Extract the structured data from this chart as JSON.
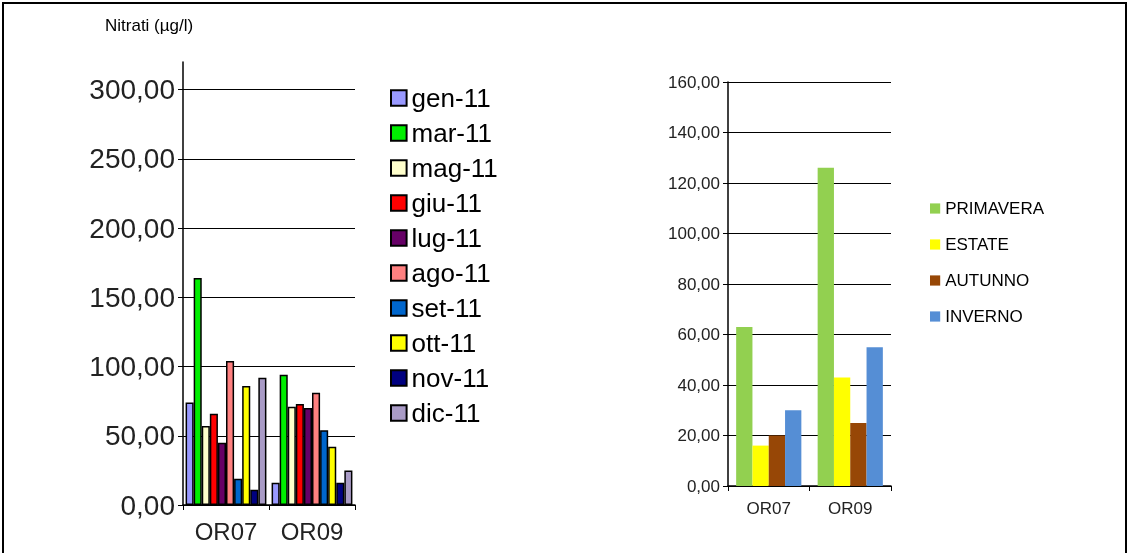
{
  "chart_data": [
    {
      "type": "bar",
      "ylabel": "Nitrati (µg/l)",
      "categories": [
        "OR07",
        "OR09"
      ],
      "series": [
        {
          "name": "gen-11",
          "color": "#9999ff",
          "values": [
            74,
            16
          ]
        },
        {
          "name": "mar-11",
          "color": "#00ee00",
          "values": [
            164,
            94
          ]
        },
        {
          "name": "mag-11",
          "color": "#ffffcc",
          "values": [
            57,
            71
          ]
        },
        {
          "name": "giu-11",
          "color": "#ff0000",
          "values": [
            66,
            73
          ]
        },
        {
          "name": "lug-11",
          "color": "#660066",
          "values": [
            45,
            70
          ]
        },
        {
          "name": "ago-11",
          "color": "#ff8080",
          "values": [
            104,
            81
          ]
        },
        {
          "name": "set-11",
          "color": "#0066cc",
          "values": [
            19,
            54
          ]
        },
        {
          "name": "ott-11",
          "color": "#ffff00",
          "values": [
            86,
            42
          ]
        },
        {
          "name": "nov-11",
          "color": "#000080",
          "values": [
            11,
            16
          ]
        },
        {
          "name": "dic-11",
          "color": "#a99bc6",
          "values": [
            92,
            25
          ]
        }
      ],
      "ylim": [
        0,
        320
      ],
      "yticks": [
        {
          "value": 0,
          "label": "0,00"
        },
        {
          "value": 50,
          "label": "50,00"
        },
        {
          "value": 100,
          "label": "100,00"
        },
        {
          "value": 150,
          "label": "150,00"
        },
        {
          "value": 200,
          "label": "200,00"
        },
        {
          "value": 250,
          "label": "250,00"
        },
        {
          "value": 300,
          "label": "300,00"
        }
      ],
      "grid": "y",
      "legend": "right"
    },
    {
      "type": "bar",
      "categories": [
        "OR07",
        "OR09"
      ],
      "series": [
        {
          "name": "PRIMAVERA",
          "color": "#92d050",
          "values": [
            63,
            126
          ]
        },
        {
          "name": "ESTATE",
          "color": "#ffff00",
          "values": [
            16,
            43
          ]
        },
        {
          "name": "AUTUNNO",
          "color": "#974706",
          "values": [
            20,
            25
          ]
        },
        {
          "name": "INVERNO",
          "color": "#558ed5",
          "values": [
            30,
            55
          ]
        }
      ],
      "ylim": [
        0,
        160
      ],
      "yticks": [
        {
          "value": 0,
          "label": "0,00"
        },
        {
          "value": 20,
          "label": "20,00"
        },
        {
          "value": 40,
          "label": "40,00"
        },
        {
          "value": 60,
          "label": "60,00"
        },
        {
          "value": 80,
          "label": "80,00"
        },
        {
          "value": 100,
          "label": "100,00"
        },
        {
          "value": 120,
          "label": "120,00"
        },
        {
          "value": 140,
          "label": "140,00"
        },
        {
          "value": 160,
          "label": "160,00"
        }
      ],
      "grid": "y",
      "legend": "right"
    }
  ]
}
